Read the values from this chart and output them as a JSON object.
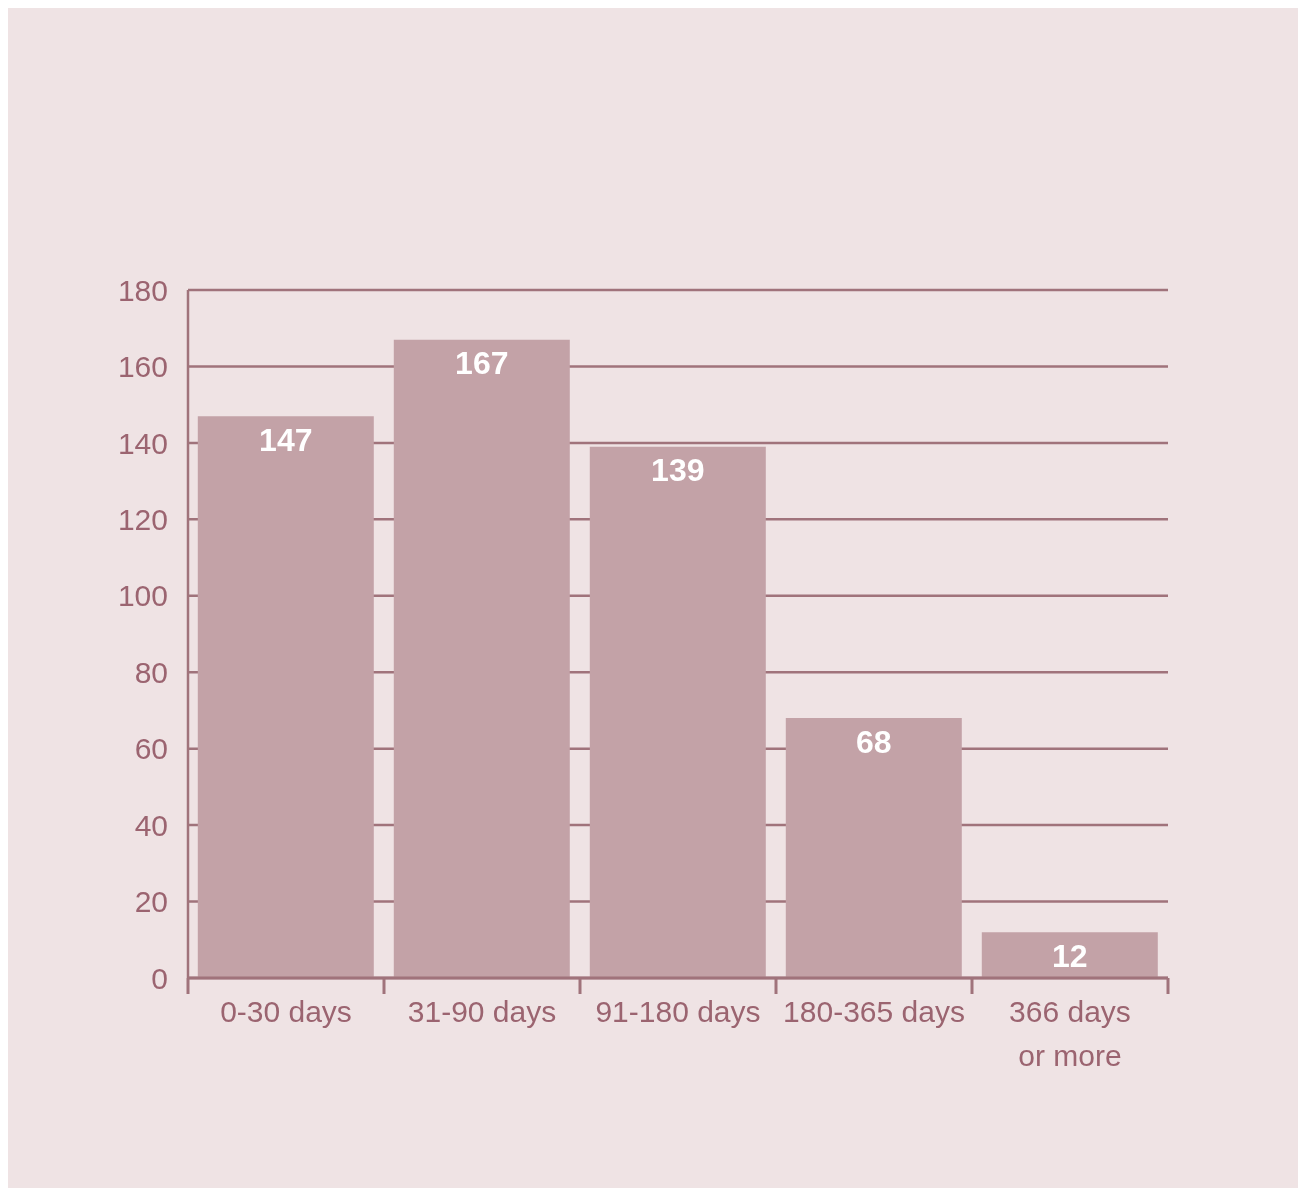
{
  "chart_data": {
    "type": "bar",
    "categories": [
      "0-30 days",
      "31-90 days",
      "91-180 days",
      "180-365 days",
      "366 days or more"
    ],
    "values": [
      147,
      167,
      139,
      68,
      12
    ],
    "color": "#c3a2a7",
    "ylim": [
      0,
      180
    ],
    "yticks": [
      0,
      20,
      40,
      60,
      80,
      100,
      120,
      140,
      160,
      180
    ],
    "grid": "y",
    "data_labels": true
  }
}
